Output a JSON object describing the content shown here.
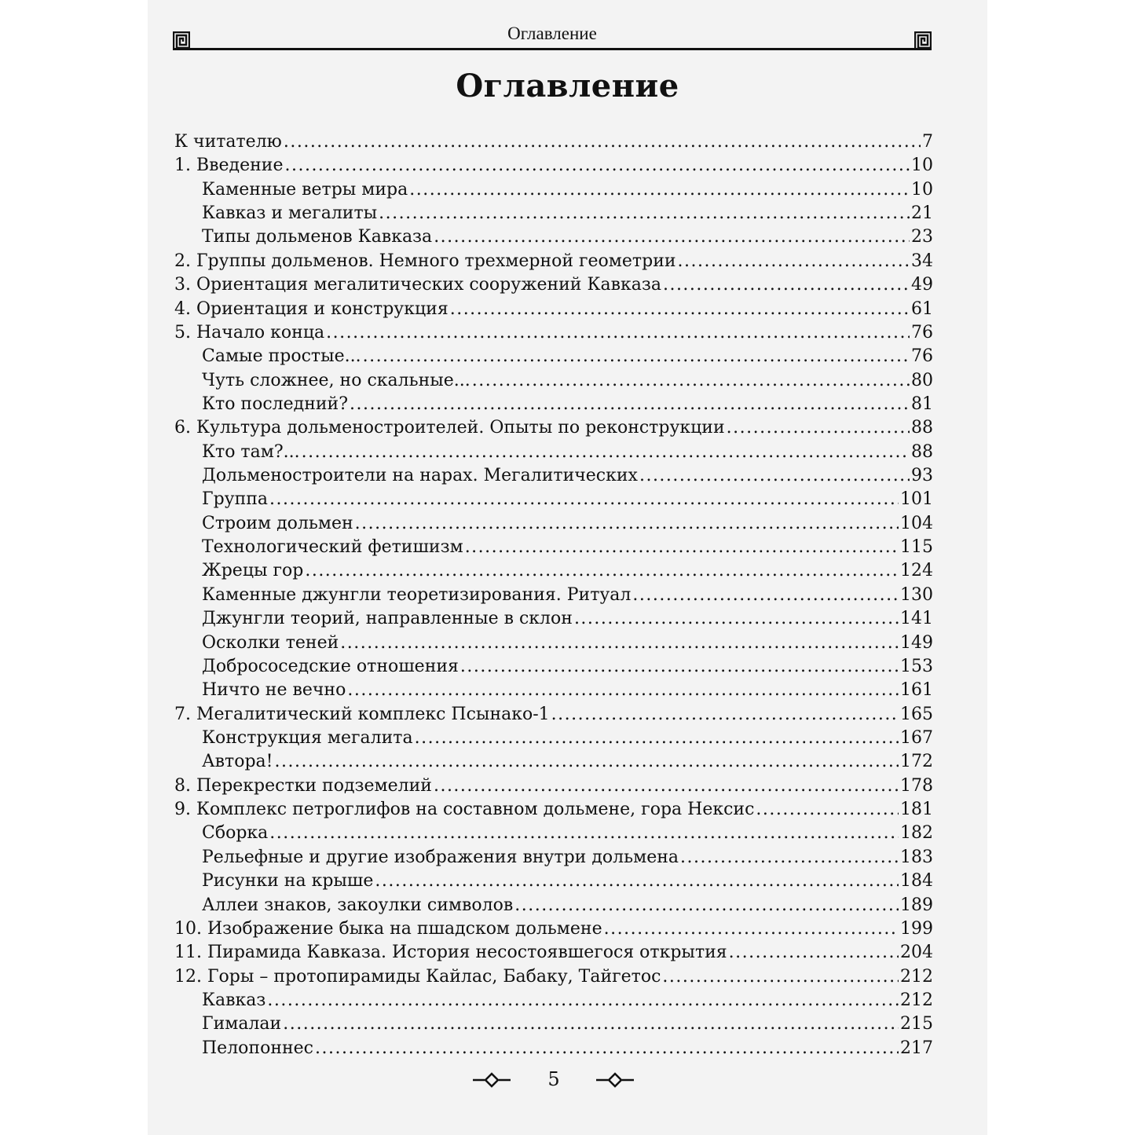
{
  "running_head": "Оглавление",
  "title": "Оглавление",
  "page_number": "5",
  "entries": [
    {
      "label": "К читателю",
      "page": "7",
      "level": 0
    },
    {
      "label": "1. Введение",
      "page": "10",
      "level": 0
    },
    {
      "label": "Каменные ветры мира",
      "page": "10",
      "level": 1
    },
    {
      "label": "Кавказ и мегалиты",
      "page": "21",
      "level": 1
    },
    {
      "label": "Типы дольменов Кавказа",
      "page": "23",
      "level": 1
    },
    {
      "label": "2. Группы дольменов. Немного трехмерной геометрии",
      "page": "34",
      "level": 0
    },
    {
      "label": "3. Ориентация мегалитических сооружений Кавказа",
      "page": "49",
      "level": 0
    },
    {
      "label": "4. Ориентация и конструкция",
      "page": "61",
      "level": 0
    },
    {
      "label": "5. Начало конца",
      "page": "76",
      "level": 0
    },
    {
      "label": "Самые простые...",
      "page": "76",
      "level": 1
    },
    {
      "label": "Чуть сложнее, но скальные...",
      "page": "80",
      "level": 1
    },
    {
      "label": "Кто последний?",
      "page": "81",
      "level": 1
    },
    {
      "label": "6. Культура дольменостроителей. Опыты по реконструкции",
      "page": "88",
      "level": 0
    },
    {
      "label": "Кто там?...",
      "page": "88",
      "level": 1
    },
    {
      "label": "Дольменостроители на нарах. Мегалитических",
      "page": "93",
      "level": 1
    },
    {
      "label": "Группа",
      "page": "101",
      "level": 1
    },
    {
      "label": "Строим дольмен",
      "page": "104",
      "level": 1
    },
    {
      "label": "Технологический фетишизм",
      "page": "115",
      "level": 1
    },
    {
      "label": "Жрецы гор",
      "page": "124",
      "level": 1
    },
    {
      "label": "Каменные джунгли теоретизирования. Ритуал",
      "page": "130",
      "level": 1
    },
    {
      "label": "Джунгли теорий, направленные в склон",
      "page": "141",
      "level": 1
    },
    {
      "label": "Осколки теней",
      "page": "149",
      "level": 1
    },
    {
      "label": "Добрососедские отношения",
      "page": "153",
      "level": 1
    },
    {
      "label": "Ничто не вечно",
      "page": "161",
      "level": 1
    },
    {
      "label": "7. Мегалитический комплекс Псынако-1",
      "page": "165",
      "level": 0
    },
    {
      "label": "Конструкция мегалита",
      "page": "167",
      "level": 1
    },
    {
      "label": "Автора!",
      "page": "172",
      "level": 1
    },
    {
      "label": "8. Перекрестки подземелий",
      "page": "178",
      "level": 0
    },
    {
      "label": "9. Комплекс петроглифов на составном дольмене, гора Нексис",
      "page": "181",
      "level": 0
    },
    {
      "label": "Сборка",
      "page": "182",
      "level": 1
    },
    {
      "label": "Рельефные и другие изображения внутри дольмена",
      "page": "183",
      "level": 1
    },
    {
      "label": "Рисунки на крыше",
      "page": "184",
      "level": 1
    },
    {
      "label": "Аллеи знаков, закоулки символов",
      "page": "189",
      "level": 1
    },
    {
      "label": "10. Изображение быка на пшадском дольмене",
      "page": "199",
      "level": 0
    },
    {
      "label": "11. Пирамида Кавказа. История несостоявшегося открытия",
      "page": "204",
      "level": 0
    },
    {
      "label": "12. Горы – протопирамиды Кайлас, Бабаку, Тайгетос",
      "page": "212",
      "level": 0
    },
    {
      "label": "Кавказ",
      "page": "212",
      "level": 1
    },
    {
      "label": "Гималаи",
      "page": "215",
      "level": 1
    },
    {
      "label": "Пелопоннес",
      "page": "217",
      "level": 1
    }
  ]
}
